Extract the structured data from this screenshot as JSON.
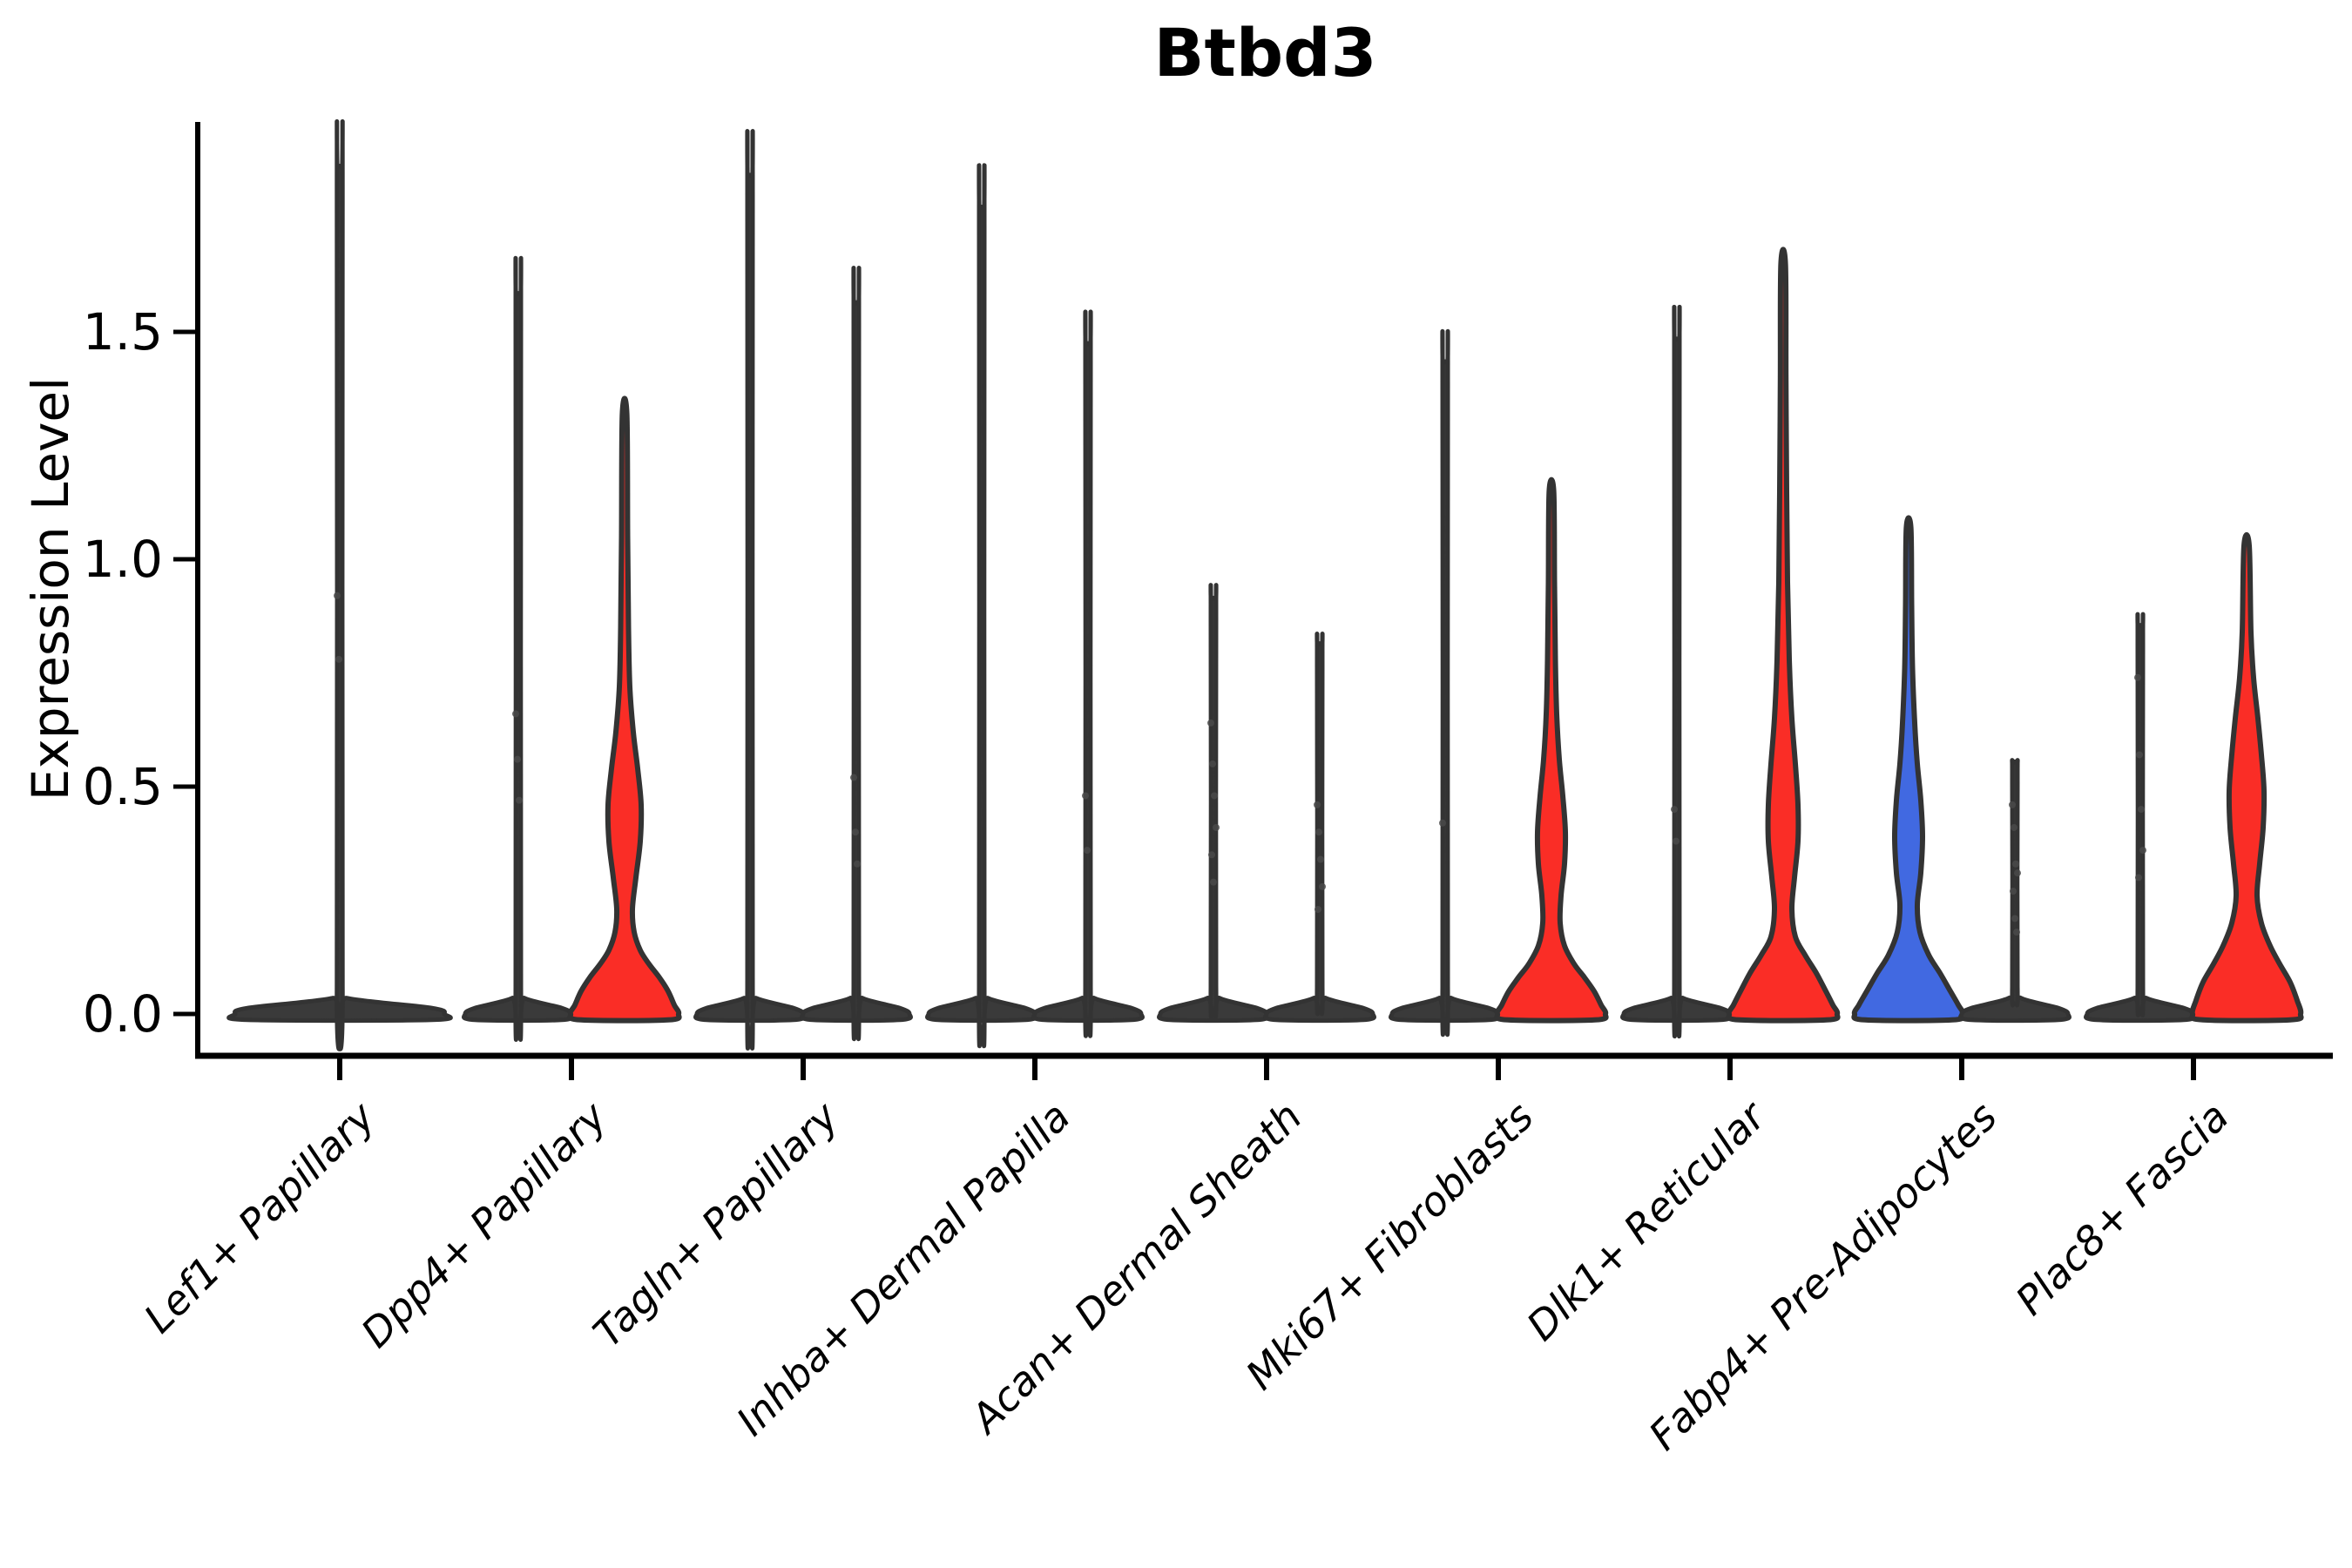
{
  "title": "Btbd3",
  "colors": {
    "red": "#fa2d26",
    "blue": "#4169e1",
    "dark": "#3a3a3a",
    "outline": "#333333",
    "axis": "#000000",
    "point": "#4a4a4a"
  },
  "chart_data": {
    "type": "violin",
    "title": "Btbd3",
    "ylabel": "Expression Level",
    "ylim": [
      -0.09,
      1.96
    ],
    "yticks": [
      0,
      0.5,
      1.0,
      1.5
    ],
    "ytick_labels": [
      "0.0",
      "0.5",
      "1.0",
      "1.5"
    ],
    "grid": false,
    "legend": "none",
    "categories": [
      "Lef1+ Papillary",
      "Dpp4+ Papillary",
      "Tagln+ Papillary",
      "Inhba+ Dermal Papilla",
      "Acan+ Dermal Sheath",
      "Mki67+ Fibroblasts",
      "Dlk1+ Reticular",
      "Fabp4+ Pre-Adipocytes",
      "Plac8+ Fascia"
    ],
    "violins": [
      {
        "category_index": 0,
        "category": "Lef1+ Papillary",
        "side": "center",
        "fill_role": "dark",
        "max": 1.86,
        "profile": [
          [
            -0.013,
            106
          ],
          [
            0,
            120
          ],
          [
            0.013,
            106
          ],
          [
            0.035,
            8
          ],
          [
            0.06,
            3.2
          ],
          [
            1.82,
            3.2
          ],
          [
            1.86,
            2.6
          ]
        ],
        "points": [
          0.92,
          0.78
        ]
      },
      {
        "category_index": 1,
        "category": "Dpp4+ Papillary",
        "side": "left",
        "fill_role": "dark",
        "max": 1.58,
        "profile": [
          [
            -0.013,
            50
          ],
          [
            0,
            61
          ],
          [
            0.013,
            50
          ],
          [
            0.035,
            7
          ],
          [
            0.06,
            3
          ],
          [
            1.54,
            3
          ],
          [
            1.58,
            2.6
          ]
        ],
        "points": [
          0.66,
          0.56,
          0.47
        ]
      },
      {
        "category_index": 1,
        "category": "Dpp4+ Papillary",
        "side": "right",
        "fill_role": "red",
        "max": 1.32,
        "profile": [
          [
            -0.013,
            50
          ],
          [
            0,
            62
          ],
          [
            0.02,
            57
          ],
          [
            0.05,
            50
          ],
          [
            0.08,
            40
          ],
          [
            0.11,
            28
          ],
          [
            0.14,
            18
          ],
          [
            0.18,
            11
          ],
          [
            0.23,
            9
          ],
          [
            0.3,
            13
          ],
          [
            0.38,
            18
          ],
          [
            0.46,
            19
          ],
          [
            0.54,
            15
          ],
          [
            0.62,
            10
          ],
          [
            0.72,
            6
          ],
          [
            0.85,
            4.5
          ],
          [
            1.05,
            3.5
          ],
          [
            1.32,
            2.6
          ]
        ],
        "points": []
      },
      {
        "category_index": 2,
        "category": "Tagln+ Papillary",
        "side": "left",
        "fill_role": "dark",
        "max": 1.84,
        "profile": [
          [
            -0.013,
            50
          ],
          [
            0,
            61
          ],
          [
            0.013,
            50
          ],
          [
            0.035,
            7
          ],
          [
            0.06,
            3
          ],
          [
            1.8,
            3
          ],
          [
            1.84,
            2.6
          ]
        ],
        "points": []
      },
      {
        "category_index": 2,
        "category": "Tagln+ Papillary",
        "side": "right",
        "fill_role": "dark",
        "max": 1.56,
        "profile": [
          [
            -0.013,
            50
          ],
          [
            0,
            61
          ],
          [
            0.013,
            50
          ],
          [
            0.035,
            7
          ],
          [
            0.06,
            3
          ],
          [
            1.52,
            3
          ],
          [
            1.56,
            2.6
          ]
        ],
        "points": [
          0.52,
          0.4,
          0.33
        ]
      },
      {
        "category_index": 3,
        "category": "Inhba+ Dermal Papilla",
        "side": "left",
        "fill_role": "dark",
        "max": 1.77,
        "profile": [
          [
            -0.013,
            50
          ],
          [
            0,
            61
          ],
          [
            0.013,
            50
          ],
          [
            0.035,
            7
          ],
          [
            0.06,
            3
          ],
          [
            1.73,
            3
          ],
          [
            1.77,
            2.6
          ]
        ],
        "points": []
      },
      {
        "category_index": 3,
        "category": "Inhba+ Dermal Papilla",
        "side": "right",
        "fill_role": "dark",
        "max": 1.47,
        "profile": [
          [
            -0.013,
            50
          ],
          [
            0,
            61
          ],
          [
            0.013,
            50
          ],
          [
            0.035,
            7
          ],
          [
            0.06,
            3
          ],
          [
            1.43,
            3
          ],
          [
            1.47,
            2.6
          ]
        ],
        "points": [
          0.48,
          0.36
        ]
      },
      {
        "category_index": 4,
        "category": "Acan+ Dermal Sheath",
        "side": "left",
        "fill_role": "dark",
        "max": 0.91,
        "profile": [
          [
            -0.013,
            50
          ],
          [
            0,
            61
          ],
          [
            0.013,
            50
          ],
          [
            0.035,
            7
          ],
          [
            0.06,
            3
          ],
          [
            0.87,
            3
          ],
          [
            0.91,
            2.6
          ]
        ],
        "points": [
          0.64,
          0.55,
          0.48,
          0.41,
          0.35,
          0.29
        ]
      },
      {
        "category_index": 4,
        "category": "Acan+ Dermal Sheath",
        "side": "right",
        "fill_role": "dark",
        "max": 0.81,
        "profile": [
          [
            -0.013,
            50
          ],
          [
            0,
            61
          ],
          [
            0.013,
            50
          ],
          [
            0.035,
            7
          ],
          [
            0.06,
            3
          ],
          [
            0.77,
            3
          ],
          [
            0.81,
            2.6
          ]
        ],
        "points": [
          0.46,
          0.4,
          0.34,
          0.28,
          0.23
        ]
      },
      {
        "category_index": 5,
        "category": "Mki67+ Fibroblasts",
        "side": "left",
        "fill_role": "dark",
        "max": 1.43,
        "profile": [
          [
            -0.013,
            50
          ],
          [
            0,
            61
          ],
          [
            0.013,
            50
          ],
          [
            0.035,
            7
          ],
          [
            0.06,
            3
          ],
          [
            1.39,
            3
          ],
          [
            1.43,
            2.6
          ]
        ],
        "points": [
          0.42
        ]
      },
      {
        "category_index": 5,
        "category": "Mki67+ Fibroblasts",
        "side": "right",
        "fill_role": "red",
        "max": 1.15,
        "profile": [
          [
            -0.013,
            50
          ],
          [
            0,
            62
          ],
          [
            0.02,
            57
          ],
          [
            0.05,
            49
          ],
          [
            0.08,
            38
          ],
          [
            0.11,
            26
          ],
          [
            0.15,
            15
          ],
          [
            0.2,
            10
          ],
          [
            0.26,
            11
          ],
          [
            0.33,
            15
          ],
          [
            0.4,
            16
          ],
          [
            0.48,
            13
          ],
          [
            0.56,
            9
          ],
          [
            0.66,
            6
          ],
          [
            0.78,
            4.5
          ],
          [
            0.95,
            3.5
          ],
          [
            1.15,
            2.6
          ]
        ],
        "points": []
      },
      {
        "category_index": 6,
        "category": "Dlk1+ Reticular",
        "side": "left",
        "fill_role": "dark",
        "max": 1.48,
        "profile": [
          [
            -0.013,
            50
          ],
          [
            0,
            61
          ],
          [
            0.013,
            50
          ],
          [
            0.035,
            7
          ],
          [
            0.06,
            3
          ],
          [
            1.44,
            3
          ],
          [
            1.48,
            2.6
          ]
        ],
        "points": [
          0.45,
          0.38
        ]
      },
      {
        "category_index": 6,
        "category": "Dlk1+ Reticular",
        "side": "right",
        "fill_role": "red",
        "max": 1.65,
        "profile": [
          [
            -0.013,
            50
          ],
          [
            0,
            62
          ],
          [
            0.02,
            57
          ],
          [
            0.05,
            49
          ],
          [
            0.09,
            38
          ],
          [
            0.13,
            25
          ],
          [
            0.17,
            14
          ],
          [
            0.23,
            10
          ],
          [
            0.3,
            13
          ],
          [
            0.38,
            17
          ],
          [
            0.46,
            17
          ],
          [
            0.55,
            14
          ],
          [
            0.65,
            10
          ],
          [
            0.78,
            7
          ],
          [
            0.95,
            5
          ],
          [
            1.15,
            4
          ],
          [
            1.4,
            3.2
          ],
          [
            1.65,
            2.6
          ]
        ],
        "points": []
      },
      {
        "category_index": 7,
        "category": "Fabp4+ Pre-Adipocytes",
        "side": "left",
        "fill_role": "blue",
        "max": 1.07,
        "profile": [
          [
            -0.013,
            50
          ],
          [
            0,
            62
          ],
          [
            0.02,
            57
          ],
          [
            0.05,
            48
          ],
          [
            0.09,
            36
          ],
          [
            0.13,
            23
          ],
          [
            0.18,
            13
          ],
          [
            0.24,
            10
          ],
          [
            0.31,
            14
          ],
          [
            0.39,
            16
          ],
          [
            0.47,
            14
          ],
          [
            0.55,
            10
          ],
          [
            0.64,
            7
          ],
          [
            0.76,
            4.5
          ],
          [
            0.9,
            3.5
          ],
          [
            1.07,
            2.6
          ]
        ],
        "points": []
      },
      {
        "category_index": 7,
        "category": "Fabp4+ Pre-Adipocytes",
        "side": "right",
        "fill_role": "dark",
        "max": 0.55,
        "profile": [
          [
            -0.013,
            50
          ],
          [
            0,
            61
          ],
          [
            0.013,
            50
          ],
          [
            0.035,
            7
          ],
          [
            0.06,
            3
          ],
          [
            0.51,
            3
          ],
          [
            0.55,
            2.6
          ]
        ],
        "points": [
          0.46,
          0.41,
          0.33,
          0.31,
          0.27,
          0.21,
          0.18
        ]
      },
      {
        "category_index": 8,
        "category": "Plac8+ Fascia",
        "side": "left",
        "fill_role": "dark",
        "max": 0.85,
        "profile": [
          [
            -0.013,
            50
          ],
          [
            0,
            61
          ],
          [
            0.013,
            50
          ],
          [
            0.035,
            7
          ],
          [
            0.06,
            3
          ],
          [
            0.81,
            3
          ],
          [
            0.85,
            2.6
          ]
        ],
        "points": [
          0.74,
          0.57,
          0.45,
          0.36,
          0.3
        ]
      },
      {
        "category_index": 8,
        "category": "Plac8+ Fascia",
        "side": "right",
        "fill_role": "red",
        "max": 1.03,
        "profile": [
          [
            -0.013,
            50
          ],
          [
            0,
            62
          ],
          [
            0.03,
            58
          ],
          [
            0.07,
            50
          ],
          [
            0.11,
            38
          ],
          [
            0.15,
            27
          ],
          [
            0.2,
            17
          ],
          [
            0.26,
            12
          ],
          [
            0.33,
            15
          ],
          [
            0.41,
            19
          ],
          [
            0.49,
            20
          ],
          [
            0.57,
            17
          ],
          [
            0.65,
            13
          ],
          [
            0.74,
            8
          ],
          [
            0.84,
            5
          ],
          [
            1.03,
            3
          ]
        ],
        "points": []
      }
    ]
  }
}
